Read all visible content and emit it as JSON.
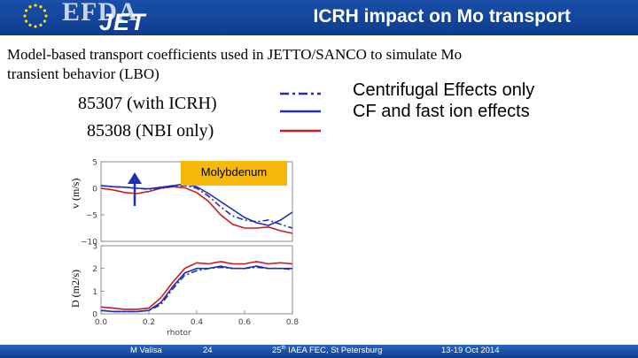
{
  "header": {
    "title": "ICRH  impact on Mo transport",
    "logo_text_1": "EFDA",
    "logo_text_2": "JET",
    "header_color": "#1a4fa8"
  },
  "subtitle": {
    "line1": "Model-based transport coefficients   used in JETTO/SANCO to simulate Mo",
    "line2": "transient behavior (LBO)"
  },
  "shots": [
    {
      "label": "85307  (with ICRH)"
    },
    {
      "label": "85308  (NBI  only)"
    }
  ],
  "legend": [
    {
      "label": "Centrifugal Effects only",
      "color": "#1f2fb0",
      "style": "dashdot"
    },
    {
      "label": "CF and fast ion effects",
      "color": "#1f2fb0",
      "style": "solid"
    },
    {
      "label": "",
      "color": "#d01818",
      "style": "solid"
    }
  ],
  "panel_label": "Molybdenum",
  "chart_data": [
    {
      "type": "line",
      "ylabel": "v (m/s)",
      "xlim": [
        0,
        0.8
      ],
      "ylim": [
        -10,
        5
      ],
      "yticks": [
        "5",
        "0",
        "−5",
        "−10"
      ],
      "series": [
        {
          "color": "#d01818",
          "style": "solid",
          "x": [
            0.0,
            0.05,
            0.1,
            0.15,
            0.2,
            0.25,
            0.3,
            0.35,
            0.4,
            0.45,
            0.5,
            0.55,
            0.6,
            0.65,
            0.7,
            0.75,
            0.8
          ],
          "y": [
            0.0,
            -0.3,
            -0.8,
            -1.0,
            -0.6,
            0.0,
            0.3,
            0.1,
            -0.8,
            -2.5,
            -5.0,
            -6.8,
            -7.5,
            -7.5,
            -7.3,
            -8.0,
            -8.5
          ]
        },
        {
          "color": "#1f2fb0",
          "style": "solid",
          "x": [
            0.0,
            0.05,
            0.1,
            0.15,
            0.2,
            0.25,
            0.3,
            0.35,
            0.4,
            0.45,
            0.5,
            0.55,
            0.6,
            0.65,
            0.7,
            0.75,
            0.8
          ],
          "y": [
            0.5,
            0.3,
            0.2,
            0.0,
            -0.1,
            0.2,
            0.5,
            0.8,
            0.3,
            -1.0,
            -2.5,
            -4.0,
            -5.5,
            -6.5,
            -7.0,
            -6.0,
            -4.5
          ]
        },
        {
          "color": "#1f2fb0",
          "style": "dashdot",
          "x": [
            0.0,
            0.05,
            0.1,
            0.15,
            0.2,
            0.25,
            0.3,
            0.35,
            0.4,
            0.45,
            0.5,
            0.55,
            0.6,
            0.65,
            0.7,
            0.75,
            0.8
          ],
          "y": [
            0.5,
            0.3,
            0.2,
            0.0,
            -0.2,
            0.0,
            0.3,
            0.5,
            0.0,
            -1.5,
            -3.5,
            -5.2,
            -6.0,
            -6.3,
            -6.0,
            -6.8,
            -7.5
          ]
        }
      ]
    },
    {
      "type": "line",
      "ylabel": "D (m2/s)",
      "xlabel": "rhotor",
      "xlim": [
        0,
        0.8
      ],
      "ylim": [
        0,
        3
      ],
      "xticks": [
        "0.0",
        "0.2",
        "0.4",
        "0.6",
        "0.8"
      ],
      "yticks": [
        "3",
        "2",
        "1",
        "0"
      ],
      "series": [
        {
          "color": "#d01818",
          "style": "solid",
          "x": [
            0.0,
            0.05,
            0.1,
            0.15,
            0.2,
            0.25,
            0.3,
            0.35,
            0.4,
            0.45,
            0.5,
            0.55,
            0.6,
            0.65,
            0.7,
            0.75,
            0.8
          ],
          "y": [
            0.3,
            0.25,
            0.2,
            0.2,
            0.25,
            0.7,
            1.4,
            2.0,
            2.25,
            2.2,
            2.3,
            2.2,
            2.2,
            2.3,
            2.2,
            2.25,
            2.2
          ]
        },
        {
          "color": "#1f2fb0",
          "style": "solid",
          "x": [
            0.0,
            0.05,
            0.1,
            0.15,
            0.2,
            0.25,
            0.3,
            0.35,
            0.4,
            0.45,
            0.5,
            0.55,
            0.6,
            0.65,
            0.7,
            0.75,
            0.8
          ],
          "y": [
            0.15,
            0.1,
            0.1,
            0.1,
            0.15,
            0.5,
            1.2,
            1.8,
            2.0,
            2.0,
            2.1,
            2.0,
            2.0,
            2.1,
            2.0,
            2.0,
            2.0
          ]
        },
        {
          "color": "#1f2fb0",
          "style": "dashdot",
          "x": [
            0.0,
            0.05,
            0.1,
            0.15,
            0.2,
            0.25,
            0.3,
            0.35,
            0.4,
            0.45,
            0.5,
            0.55,
            0.6,
            0.65,
            0.7,
            0.75,
            0.8
          ],
          "y": [
            0.15,
            0.1,
            0.1,
            0.1,
            0.15,
            0.4,
            1.1,
            1.7,
            1.9,
            2.0,
            2.05,
            2.0,
            2.0,
            2.05,
            2.0,
            2.0,
            1.95
          ]
        }
      ]
    }
  ],
  "footer": {
    "author": "M Valisa",
    "page": "24",
    "conference": "25",
    "conference_sup": "th",
    "conference_rest": " IAEA FEC, St Petersburg",
    "date": "13-19 Oct 2014"
  }
}
